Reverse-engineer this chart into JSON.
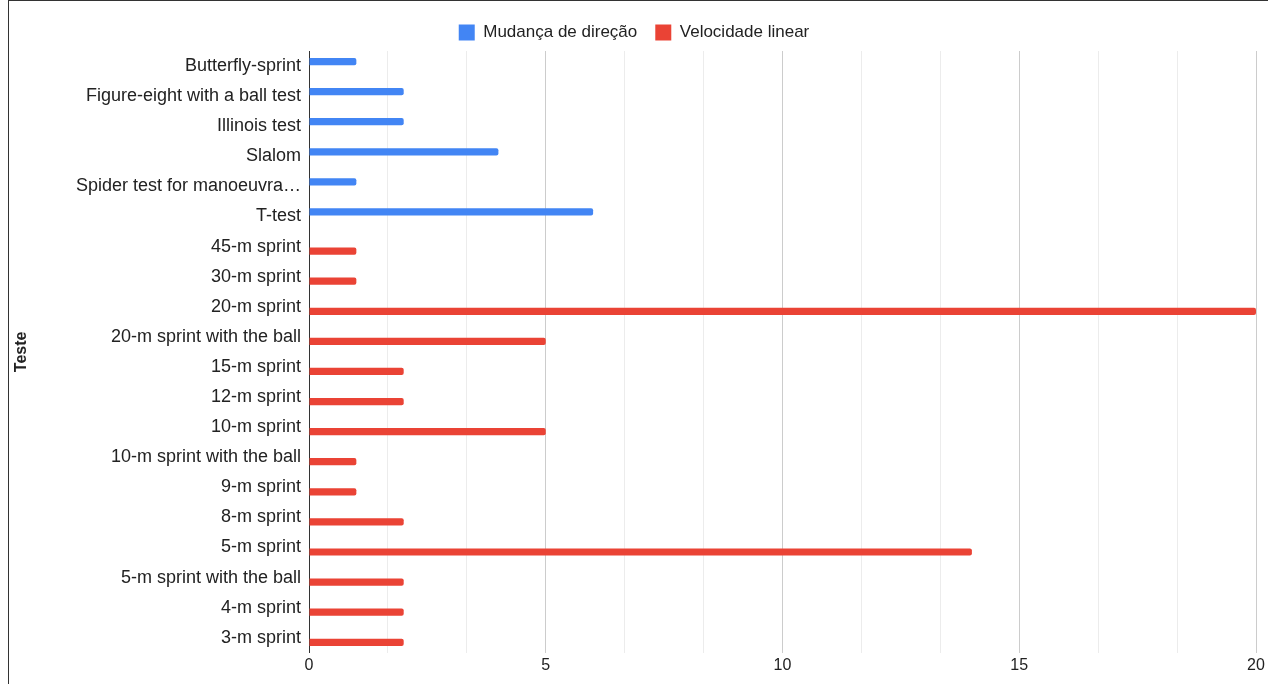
{
  "chart_data": {
    "type": "bar",
    "orientation": "horizontal",
    "ylabel": "Teste",
    "categories": [
      "Butterfly-sprint",
      "Figure-eight with a ball test",
      "Illinois test",
      "Slalom",
      "Spider test for manoeuvra…",
      "T-test",
      "45-m sprint",
      "30-m sprint",
      "20-m sprint",
      "20-m sprint with the ball",
      "15-m sprint",
      "12-m sprint",
      "10-m sprint",
      "10-m sprint with the ball",
      "9-m sprint",
      "8-m sprint",
      "5-m sprint",
      "5-m sprint with the ball",
      "4-m sprint",
      "3-m sprint"
    ],
    "series": [
      {
        "name": "Mudança de direção",
        "color": "#4285f4",
        "values": [
          1,
          2,
          2,
          4,
          1,
          6,
          null,
          null,
          null,
          null,
          null,
          null,
          null,
          null,
          null,
          null,
          null,
          null,
          null,
          null
        ]
      },
      {
        "name": "Velocidade linear",
        "color": "#ea4335",
        "values": [
          null,
          null,
          null,
          null,
          null,
          null,
          1,
          1,
          20,
          5,
          2,
          2,
          5,
          1,
          1,
          2,
          14,
          2,
          2,
          2
        ]
      }
    ],
    "xlim": [
      0,
      20
    ],
    "xticks": [
      0,
      {
        "value": 1.667,
        "label": null
      },
      {
        "value": 3.333,
        "label": null
      },
      5,
      {
        "value": 6.667,
        "label": null
      },
      {
        "value": 8.333,
        "label": null
      },
      10,
      {
        "value": 11.667,
        "label": null
      },
      {
        "value": 13.333,
        "label": null
      },
      15,
      {
        "value": 16.667,
        "label": null
      },
      {
        "value": 18.333,
        "label": null
      },
      20
    ],
    "grid": "x",
    "legend": "top"
  }
}
